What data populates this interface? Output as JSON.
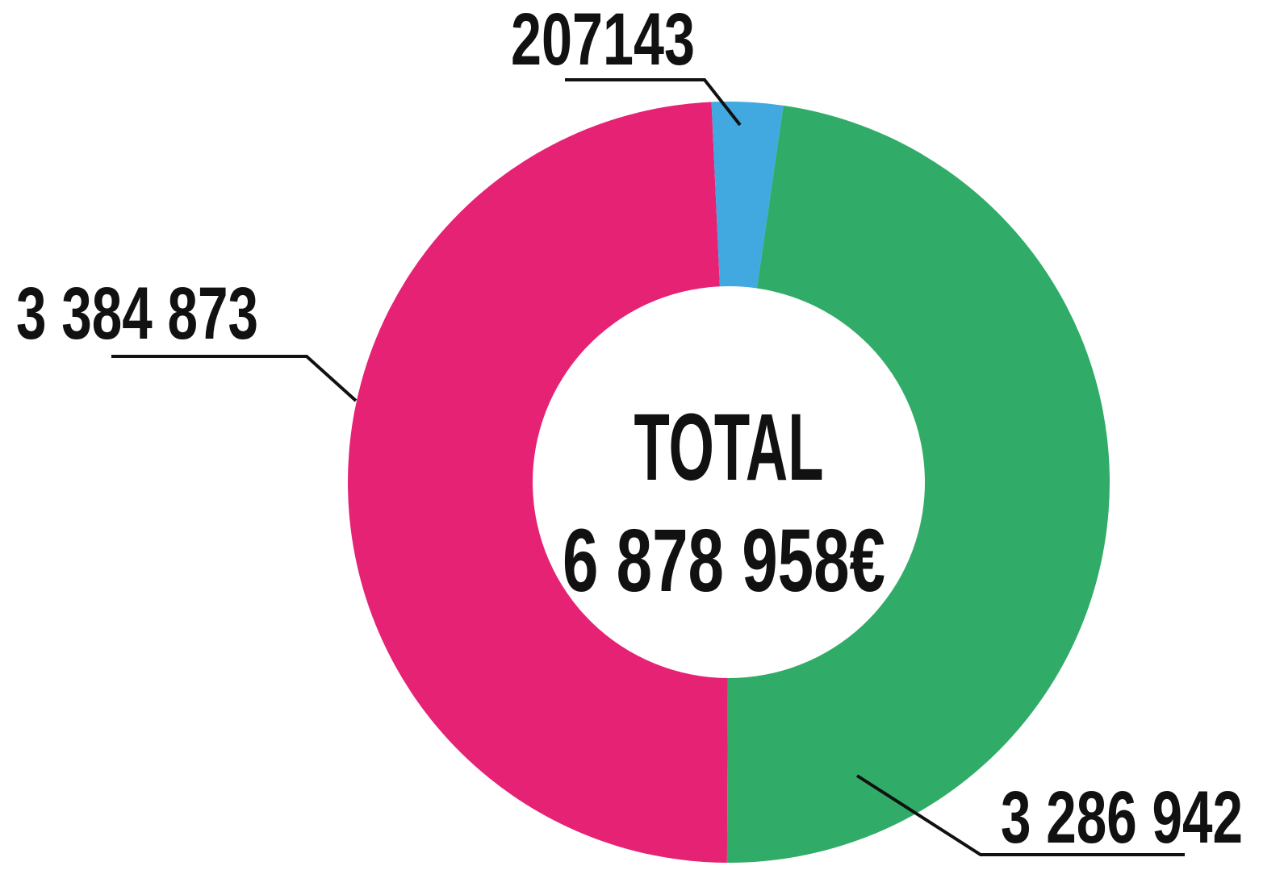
{
  "chart_data": {
    "type": "donut",
    "values": [
      207143,
      3286942,
      3384873
    ],
    "value_labels": [
      "207143",
      "3 286 942",
      "3 384 873"
    ],
    "colors": [
      "#41a8e0",
      "#31ac68",
      "#e62275"
    ],
    "center_title": "TOTAL",
    "center_label": "6 878 958€"
  }
}
